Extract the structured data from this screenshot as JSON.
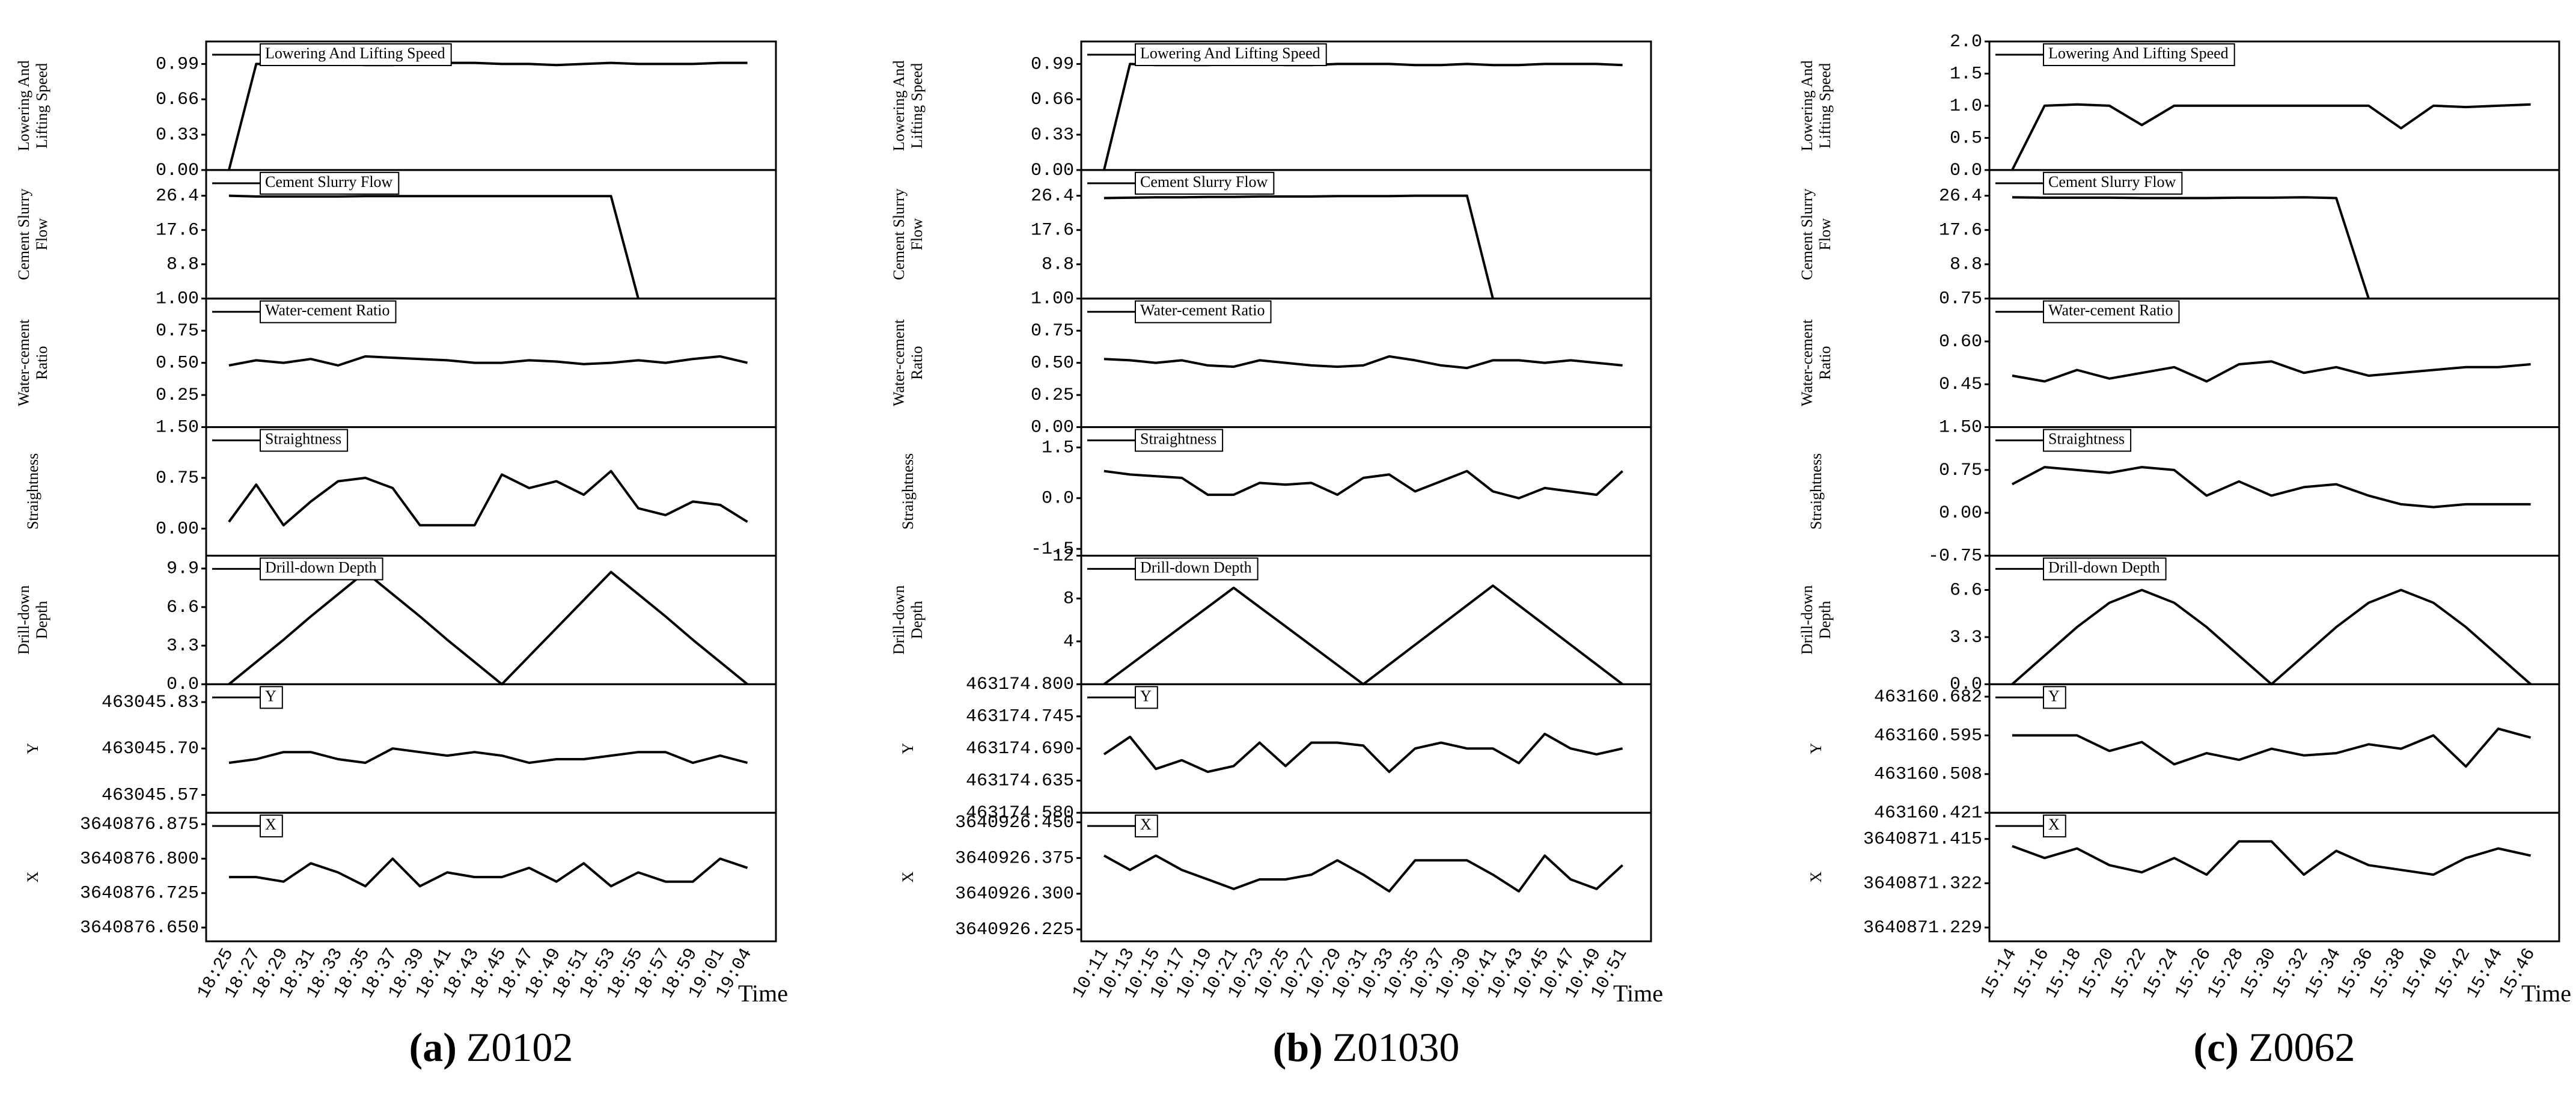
{
  "chart_data": [
    {
      "type": "line",
      "caption_label": "(a)",
      "caption": "Z0102",
      "xlabel": "Time",
      "categories": [
        "18:25",
        "18:27",
        "18:29",
        "18:31",
        "18:33",
        "18:35",
        "18:37",
        "18:39",
        "18:41",
        "18:43",
        "18:45",
        "18:47",
        "18:49",
        "18:51",
        "18:53",
        "18:55",
        "18:57",
        "18:59",
        "19:01",
        "19:04"
      ],
      "subplots": [
        {
          "legend": "Lowering And Lifting Speed",
          "ylabel": [
            "Lowering And",
            "Lifting Speed"
          ],
          "ylim": [
            0,
            1.2
          ],
          "yticks": [
            {
              "value": 0,
              "label": "0.00"
            },
            0.33,
            0.66,
            0.99
          ],
          "values": [
            0,
            0.99,
            0.99,
            0.99,
            0.99,
            0.98,
            0.98,
            1.0,
            1.0,
            1.0,
            0.99,
            0.99,
            0.98,
            0.99,
            1.0,
            0.99,
            0.99,
            0.99,
            1.0,
            1.0
          ]
        },
        {
          "legend": "Cement Slurry Flow",
          "ylabel": [
            "Cement Slurry",
            "Flow"
          ],
          "ylim": [
            0,
            33
          ],
          "yticks": [
            8.8,
            17.6,
            26.4
          ],
          "values": [
            26.4,
            26.2,
            26.2,
            26.2,
            26.2,
            26.3,
            26.3,
            26.3,
            26.3,
            26.3,
            26.3,
            26.3,
            26.3,
            26.3,
            26.3,
            0,
            null,
            null,
            null,
            null
          ]
        },
        {
          "legend": "Water-cement Ratio",
          "ylabel": [
            "Water-cement",
            "Ratio"
          ],
          "ylim": [
            0,
            1
          ],
          "yticks": [
            0.25,
            {
              "value": 0.5,
              "label": "0.50"
            },
            0.75,
            {
              "value": 1,
              "label": "1.00"
            }
          ],
          "values": [
            0.48,
            0.52,
            0.5,
            0.53,
            0.48,
            0.55,
            0.54,
            0.53,
            0.52,
            0.5,
            0.5,
            0.52,
            0.51,
            0.49,
            0.5,
            0.52,
            0.5,
            0.53,
            0.55,
            0.5
          ]
        },
        {
          "legend": "Straightness",
          "ylabel": [
            "Straightness"
          ],
          "ylim": [
            -0.4,
            1.5
          ],
          "yticks": [
            {
              "value": 0,
              "label": "0.00"
            },
            0.75,
            {
              "value": 1.5,
              "label": "1.50"
            }
          ],
          "values": [
            0.1,
            0.65,
            0.05,
            0.4,
            0.7,
            0.75,
            0.6,
            0.05,
            0.05,
            0.05,
            0.8,
            0.6,
            0.7,
            0.5,
            0.85,
            0.3,
            0.2,
            0.4,
            0.35,
            0.1
          ]
        },
        {
          "legend": "Drill-down Depth",
          "ylabel": [
            "Drill-down",
            "Depth"
          ],
          "ylim": [
            0,
            11
          ],
          "yticks": [
            {
              "value": 0,
              "label": "0.0"
            },
            3.3,
            6.6,
            9.9
          ],
          "values": [
            0,
            1.9,
            3.8,
            5.8,
            7.7,
            9.6,
            7.7,
            5.8,
            3.8,
            1.9,
            0,
            2.4,
            4.8,
            7.2,
            9.6,
            7.7,
            5.8,
            3.8,
            1.9,
            0
          ]
        },
        {
          "legend": "Y",
          "ylabel": [
            "Y"
          ],
          "ylim": [
            463045.52,
            463045.88
          ],
          "yticks": [
            463045.57,
            {
              "value": 463045.7,
              "label": "463045.70"
            },
            463045.83
          ],
          "values": [
            463045.66,
            463045.67,
            463045.69,
            463045.69,
            463045.67,
            463045.66,
            463045.7,
            463045.69,
            463045.68,
            463045.69,
            463045.68,
            463045.66,
            463045.67,
            463045.67,
            463045.68,
            463045.69,
            463045.69,
            463045.66,
            463045.68,
            463045.66
          ]
        },
        {
          "legend": "X",
          "ylabel": [
            "X"
          ],
          "ylim": [
            3640876.62,
            3640876.9
          ],
          "yticks": [
            {
              "value": 3640876.65,
              "label": "3640876.650"
            },
            3640876.725,
            {
              "value": 3640876.8,
              "label": "3640876.800"
            },
            3640876.875
          ],
          "values": [
            3640876.76,
            3640876.76,
            3640876.75,
            3640876.79,
            3640876.77,
            3640876.74,
            3640876.8,
            3640876.74,
            3640876.77,
            3640876.76,
            3640876.76,
            3640876.78,
            3640876.75,
            3640876.79,
            3640876.74,
            3640876.77,
            3640876.75,
            3640876.75,
            3640876.8,
            3640876.78
          ]
        }
      ]
    },
    {
      "type": "line",
      "caption_label": "(b)",
      "caption": "Z01030",
      "xlabel": "Time",
      "categories": [
        "10:11",
        "10:13",
        "10:15",
        "10:17",
        "10:19",
        "10:21",
        "10:23",
        "10:25",
        "10:27",
        "10:29",
        "10:31",
        "10:33",
        "10:35",
        "10:37",
        "10:39",
        "10:41",
        "10:43",
        "10:45",
        "10:47",
        "10:49",
        "10:51"
      ],
      "subplots": [
        {
          "legend": "Lowering And Lifting Speed",
          "ylabel": [
            "Lowering And",
            "Lifting Speed"
          ],
          "ylim": [
            0,
            1.2
          ],
          "yticks": [
            {
              "value": 0,
              "label": "0.00"
            },
            0.33,
            0.66,
            0.99
          ],
          "values": [
            0,
            0.99,
            0.98,
            0.98,
            0.98,
            0.99,
            0.99,
            0.98,
            0.98,
            0.99,
            0.99,
            0.99,
            0.98,
            0.98,
            0.99,
            0.98,
            0.98,
            0.99,
            0.99,
            0.99,
            0.98
          ]
        },
        {
          "legend": "Cement Slurry Flow",
          "ylabel": [
            "Cement Slurry",
            "Flow"
          ],
          "ylim": [
            0,
            33
          ],
          "yticks": [
            8.8,
            17.6,
            26.4
          ],
          "values": [
            25.8,
            25.9,
            26.0,
            26.0,
            26.1,
            26.1,
            26.2,
            26.2,
            26.2,
            26.3,
            26.3,
            26.3,
            26.4,
            26.4,
            26.4,
            0,
            null,
            null,
            null,
            null,
            null
          ]
        },
        {
          "legend": "Water-cement Ratio",
          "ylabel": [
            "Water-cement",
            "Ratio"
          ],
          "ylim": [
            0,
            1
          ],
          "yticks": [
            {
              "value": 0,
              "label": "0.00"
            },
            0.25,
            {
              "value": 0.5,
              "label": "0.50"
            },
            0.75,
            {
              "value": 1,
              "label": "1.00"
            }
          ],
          "values": [
            0.53,
            0.52,
            0.5,
            0.52,
            0.48,
            0.47,
            0.52,
            0.5,
            0.48,
            0.47,
            0.48,
            0.55,
            0.52,
            0.48,
            0.46,
            0.52,
            0.52,
            0.5,
            0.52,
            0.5,
            0.48
          ]
        },
        {
          "legend": "Straightness",
          "ylabel": [
            "Straightness"
          ],
          "ylim": [
            -1.7,
            2.1
          ],
          "yticks": [
            -1.5,
            {
              "value": 0,
              "label": "0.0"
            },
            1.5
          ],
          "values": [
            0.8,
            0.7,
            0.65,
            0.6,
            0.1,
            0.1,
            0.45,
            0.4,
            0.45,
            0.1,
            0.6,
            0.7,
            0.2,
            0.5,
            0.8,
            0.2,
            0,
            0.3,
            0.2,
            0.1,
            0.8
          ]
        },
        {
          "legend": "Drill-down Depth",
          "ylabel": [
            "Drill-down",
            "Depth"
          ],
          "ylim": [
            0,
            12
          ],
          "yticks": [
            4,
            8,
            12
          ],
          "values": [
            0,
            1.8,
            3.6,
            5.4,
            7.2,
            9,
            7.2,
            5.4,
            3.6,
            1.8,
            0,
            1.84,
            3.68,
            5.52,
            7.36,
            9.2,
            7.36,
            5.52,
            3.68,
            1.84,
            0
          ]
        },
        {
          "legend": "Y",
          "ylabel": [
            "Y"
          ],
          "ylim": [
            463174.58,
            463174.8
          ],
          "yticks": [
            {
              "value": 463174.58,
              "label": "463174.580"
            },
            463174.635,
            {
              "value": 463174.69,
              "label": "463174.690"
            },
            463174.745,
            {
              "value": 463174.8,
              "label": "463174.800"
            }
          ],
          "values": [
            463174.68,
            463174.71,
            463174.655,
            463174.67,
            463174.65,
            463174.66,
            463174.7,
            463174.66,
            463174.7,
            463174.7,
            463174.695,
            463174.65,
            463174.69,
            463174.7,
            463174.69,
            463174.69,
            463174.665,
            463174.715,
            463174.69,
            463174.68,
            463174.69
          ]
        },
        {
          "legend": "X",
          "ylabel": [
            "X"
          ],
          "ylim": [
            3640926.2,
            3640926.47
          ],
          "yticks": [
            3640926.225,
            {
              "value": 3640926.3,
              "label": "3640926.300"
            },
            3640926.375,
            {
              "value": 3640926.45,
              "label": "3640926.450"
            }
          ],
          "values": [
            3640926.38,
            3640926.35,
            3640926.38,
            3640926.35,
            3640926.33,
            3640926.31,
            3640926.33,
            3640926.33,
            3640926.34,
            3640926.37,
            3640926.34,
            3640926.305,
            3640926.37,
            3640926.37,
            3640926.37,
            3640926.34,
            3640926.305,
            3640926.38,
            3640926.33,
            3640926.31,
            3640926.36
          ]
        }
      ]
    },
    {
      "type": "line",
      "caption_label": "(c)",
      "caption": "Z0062",
      "xlabel": "Time",
      "categories": [
        "15:14",
        "15:16",
        "15:18",
        "15:20",
        "15:22",
        "15:24",
        "15:26",
        "15:28",
        "15:30",
        "15:32",
        "15:34",
        "15:36",
        "15:38",
        "15:40",
        "15:42",
        "15:44",
        "15:46"
      ],
      "subplots": [
        {
          "legend": "Lowering And Lifting Speed",
          "ylabel": [
            "Lowering And",
            "Lifting Speed"
          ],
          "ylim": [
            0,
            2
          ],
          "yticks": [
            {
              "value": 0,
              "label": "0.0"
            },
            0.5,
            {
              "value": 1,
              "label": "1.0"
            },
            1.5,
            {
              "value": 2,
              "label": "2.0"
            }
          ],
          "values": [
            0,
            1.0,
            1.02,
            1.0,
            0.7,
            1.0,
            1.0,
            1.0,
            1.0,
            1.0,
            1.0,
            1.0,
            0.65,
            1.0,
            0.98,
            1.0,
            1.02
          ]
        },
        {
          "legend": "Cement Slurry Flow",
          "ylabel": [
            "Cement Slurry",
            "Flow"
          ],
          "ylim": [
            0,
            33
          ],
          "yticks": [
            8.8,
            17.6,
            26.4
          ],
          "values": [
            26.0,
            25.9,
            25.9,
            25.9,
            25.8,
            25.8,
            25.8,
            25.9,
            25.9,
            26.0,
            25.8,
            0,
            null,
            null,
            null,
            null,
            null
          ]
        },
        {
          "legend": "Water-cement Ratio",
          "ylabel": [
            "Water-cement",
            "Ratio"
          ],
          "ylim": [
            0.3,
            0.75
          ],
          "yticks": [
            0.45,
            {
              "value": 0.6,
              "label": "0.60"
            },
            0.75
          ],
          "values": [
            0.48,
            0.46,
            0.5,
            0.47,
            0.49,
            0.51,
            0.46,
            0.52,
            0.53,
            0.49,
            0.51,
            0.48,
            0.49,
            0.5,
            0.51,
            0.51,
            0.52
          ]
        },
        {
          "legend": "Straightness",
          "ylabel": [
            "Straightness"
          ],
          "ylim": [
            -0.75,
            1.5
          ],
          "yticks": [
            -0.75,
            {
              "value": 0,
              "label": "0.00"
            },
            0.75,
            {
              "value": 1.5,
              "label": "1.50"
            }
          ],
          "values": [
            0.5,
            0.8,
            0.75,
            0.7,
            0.8,
            0.75,
            0.3,
            0.55,
            0.3,
            0.45,
            0.5,
            0.3,
            0.15,
            0.1,
            0.15,
            0.15,
            0.15
          ]
        },
        {
          "legend": "Drill-down Depth",
          "ylabel": [
            "Drill-down",
            "Depth"
          ],
          "ylim": [
            0,
            9
          ],
          "yticks": [
            {
              "value": 0,
              "label": "0.0"
            },
            3.3,
            6.6
          ],
          "values": [
            0,
            2.0,
            4.0,
            5.7,
            6.6,
            5.7,
            4.0,
            2.0,
            0,
            2.0,
            4.0,
            5.7,
            6.6,
            5.7,
            4.0,
            2.0,
            0
          ]
        },
        {
          "legend": "Y",
          "ylabel": [
            "Y"
          ],
          "ylim": [
            463160.421,
            463160.71
          ],
          "yticks": [
            463160.421,
            463160.508,
            463160.595,
            463160.682
          ],
          "values": [
            463160.595,
            463160.595,
            463160.595,
            463160.56,
            463160.58,
            463160.53,
            463160.555,
            463160.54,
            463160.565,
            463160.55,
            463160.555,
            463160.575,
            463160.565,
            463160.595,
            463160.525,
            463160.61,
            463160.59
          ]
        },
        {
          "legend": "X",
          "ylabel": [
            "X"
          ],
          "ylim": [
            3640871.2,
            3640871.47
          ],
          "yticks": [
            3640871.229,
            3640871.322,
            3640871.415
          ],
          "values": [
            3640871.4,
            3640871.375,
            3640871.395,
            3640871.36,
            3640871.345,
            3640871.375,
            3640871.34,
            3640871.41,
            3640871.41,
            3640871.34,
            3640871.39,
            3640871.36,
            3640871.35,
            3640871.34,
            3640871.375,
            3640871.395,
            3640871.38
          ]
        }
      ]
    }
  ]
}
